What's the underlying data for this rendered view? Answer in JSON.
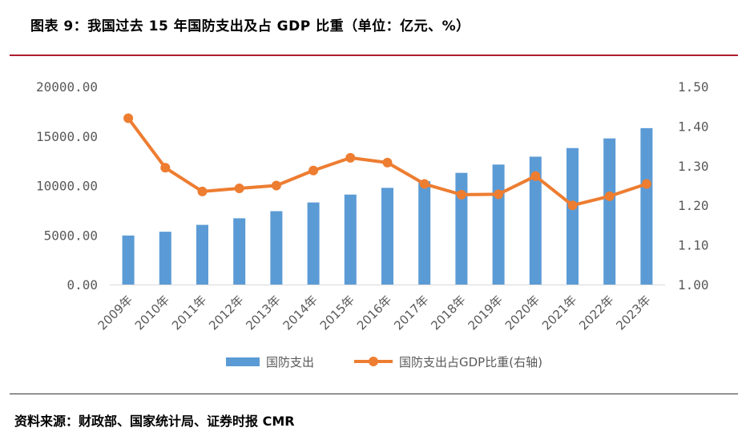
{
  "header": {
    "title": "图表 9：我国过去 15 年国防支出及占 GDP 比重（单位：亿元、%）"
  },
  "footer": {
    "source": "资料来源：财政部、国家统计局、证券时报 CMR"
  },
  "colors": {
    "bar": "#5B9BD5",
    "line": "#ED7D31",
    "rule": "#b01c2e"
  },
  "chart_data": {
    "type": "bar",
    "title": "我国过去 15 年国防支出及占 GDP 比重（单位：亿元、%）",
    "categories": [
      "2009年",
      "2010年",
      "2011年",
      "2012年",
      "2013年",
      "2014年",
      "2015年",
      "2016年",
      "2017年",
      "2018年",
      "2019年",
      "2020年",
      "2021年",
      "2022年",
      "2023年"
    ],
    "series": [
      {
        "name": "国防支出",
        "type": "bar",
        "axis": "left",
        "values": [
          4951,
          5333,
          6028,
          6692,
          7411,
          8290,
          9088,
          9766,
          10433,
          11280,
          12122,
          12918,
          13787,
          14760,
          15800
        ]
      },
      {
        "name": "国防支出占GDP比重(右轴)",
        "type": "line",
        "axis": "right",
        "values": [
          1.42,
          1.295,
          1.235,
          1.243,
          1.25,
          1.288,
          1.32,
          1.308,
          1.254,
          1.227,
          1.228,
          1.274,
          1.2,
          1.223,
          1.254
        ]
      }
    ],
    "y_left": {
      "min": 0,
      "max": 20000,
      "step": 5000,
      "tick_labels": [
        "0.00",
        "5000.00",
        "10000.00",
        "15000.00",
        "20000.00"
      ]
    },
    "y_right": {
      "min": 1.0,
      "max": 1.5,
      "step": 0.1,
      "tick_labels": [
        "1.00",
        "1.10",
        "1.20",
        "1.30",
        "1.40",
        "1.50"
      ]
    },
    "legend": {
      "position": "bottom",
      "items": [
        "国防支出",
        "国防支出占GDP比重(右轴)"
      ]
    },
    "grid": false
  }
}
